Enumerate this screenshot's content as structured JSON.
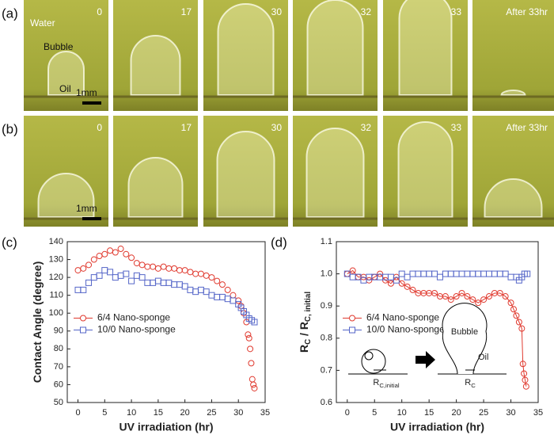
{
  "photos": {
    "rows": [
      {
        "label": "(a)",
        "frames": [
          "0",
          "17",
          "30",
          "32",
          "33",
          "After 33hr"
        ],
        "annotations": {
          "water": "Water",
          "bubble": "Bubble",
          "oil": "Oil",
          "scale": "1mm"
        }
      },
      {
        "label": "(b)",
        "frames": [
          "0",
          "17",
          "30",
          "32",
          "33",
          "After 33hr"
        ],
        "annotations": {
          "scale": "1mm"
        }
      }
    ]
  },
  "chart_data": [
    {
      "type": "scatter",
      "panel_label": "(c)",
      "xlabel": "UV irradiation (hr)",
      "ylabel": [
        {
          "text": "Contact Angle (degree)"
        }
      ],
      "xlim": [
        -2,
        35
      ],
      "xticks": [
        0,
        5,
        10,
        15,
        20,
        25,
        30,
        35
      ],
      "ylim": [
        50,
        140
      ],
      "yticks": [
        50,
        60,
        70,
        80,
        90,
        100,
        110,
        120,
        130,
        140
      ],
      "legend": "center left",
      "series": [
        {
          "name": "6/4  Nano-sponge",
          "color": "#e03a2f",
          "marker": "circle",
          "x": [
            0,
            1,
            2,
            3,
            4,
            5,
            6,
            7,
            8,
            9,
            10,
            11,
            12,
            13,
            14,
            15,
            16,
            17,
            18,
            19,
            20,
            21,
            22,
            23,
            24,
            25,
            26,
            27,
            28,
            29,
            30,
            30.5,
            31,
            31.5,
            31.8,
            32,
            32.2,
            32.4,
            32.6,
            32.8,
            33
          ],
          "values": [
            124,
            125,
            127,
            130,
            132,
            133,
            135,
            134,
            136,
            133,
            131,
            128,
            127,
            126,
            126,
            125,
            126,
            125,
            125,
            124,
            124,
            123,
            122,
            122,
            121,
            120,
            118,
            116,
            113,
            110,
            107,
            104,
            100,
            95,
            88,
            86,
            80,
            72,
            63,
            60,
            58
          ]
        },
        {
          "name": "10/0 Nano-sponge",
          "color": "#5566c8",
          "marker": "square",
          "x": [
            0,
            1,
            2,
            3,
            4,
            5,
            6,
            7,
            8,
            9,
            10,
            11,
            12,
            13,
            14,
            15,
            16,
            17,
            18,
            19,
            20,
            21,
            22,
            23,
            24,
            25,
            26,
            27,
            28,
            29,
            30,
            30.5,
            31,
            31.5,
            32,
            32.5,
            33
          ],
          "values": [
            113,
            113,
            117,
            120,
            121,
            124,
            123,
            120,
            121,
            122,
            118,
            121,
            120,
            117,
            117,
            118,
            117,
            117,
            116,
            116,
            115,
            113,
            112,
            113,
            112,
            110,
            109,
            109,
            108,
            107,
            105,
            103,
            101,
            99,
            97,
            96,
            95
          ]
        }
      ]
    },
    {
      "type": "scatter",
      "panel_label": "(d)",
      "xlabel": "UV irradiation (hr)",
      "ylabel": [
        {
          "text": "R"
        },
        {
          "text": "C",
          "sub": true
        },
        {
          "text": " / R"
        },
        {
          "text": "C, initial",
          "sub": true
        }
      ],
      "xlim": [
        -2,
        35
      ],
      "xticks": [
        0,
        5,
        10,
        15,
        20,
        25,
        30,
        35
      ],
      "ylim": [
        0.6,
        1.1
      ],
      "yticks": [
        0.6,
        0.7,
        0.8,
        0.9,
        {
          "value": 1,
          "label": "1.0"
        },
        1.1
      ],
      "legend": "center left",
      "inset": {
        "bubble": "Bubble",
        "oil": "Oil",
        "left": [
          {
            "text": "R"
          },
          {
            "text": "C,initial",
            "sub": true
          }
        ],
        "right": [
          {
            "text": "R"
          },
          {
            "text": "C",
            "sub": true
          }
        ]
      },
      "series": [
        {
          "name": "6/4  Nano-sponge",
          "color": "#e03a2f",
          "marker": "circle",
          "line": true,
          "x": [
            0,
            1,
            2,
            3,
            4,
            5,
            6,
            7,
            8,
            9,
            10,
            11,
            12,
            13,
            14,
            15,
            16,
            17,
            18,
            19,
            20,
            21,
            22,
            23,
            24,
            25,
            26,
            27,
            28,
            29,
            30,
            30.5,
            31,
            31.5,
            32,
            32.2,
            32.4,
            32.6,
            32.8
          ],
          "values": [
            1.0,
            1.01,
            0.99,
            0.99,
            0.98,
            0.99,
            1.0,
            0.98,
            0.97,
            0.99,
            0.97,
            0.96,
            0.95,
            0.94,
            0.94,
            0.94,
            0.94,
            0.93,
            0.93,
            0.92,
            0.93,
            0.94,
            0.93,
            0.92,
            0.91,
            0.92,
            0.93,
            0.94,
            0.94,
            0.93,
            0.91,
            0.89,
            0.87,
            0.85,
            0.83,
            0.72,
            0.69,
            0.67,
            0.65
          ]
        },
        {
          "name": "10/0 Nano-sponge",
          "color": "#5566c8",
          "marker": "square",
          "x": [
            0,
            1,
            2,
            3,
            4,
            5,
            6,
            7,
            8,
            9,
            10,
            11,
            12,
            13,
            14,
            15,
            16,
            17,
            18,
            19,
            20,
            21,
            22,
            23,
            24,
            25,
            26,
            27,
            28,
            29,
            30,
            31,
            31.5,
            32,
            32.5,
            33
          ],
          "values": [
            1.0,
            0.99,
            0.99,
            0.98,
            0.99,
            0.99,
            0.99,
            0.99,
            0.99,
            0.98,
            1.0,
            0.99,
            1.0,
            1.0,
            1.0,
            1.0,
            1.0,
            0.99,
            1.0,
            1.0,
            1.0,
            1.0,
            1.0,
            1.0,
            1.0,
            1.0,
            1.0,
            1.0,
            1.0,
            1.0,
            0.99,
            0.99,
            0.98,
            0.99,
            1.0,
            1.0
          ]
        }
      ]
    }
  ]
}
